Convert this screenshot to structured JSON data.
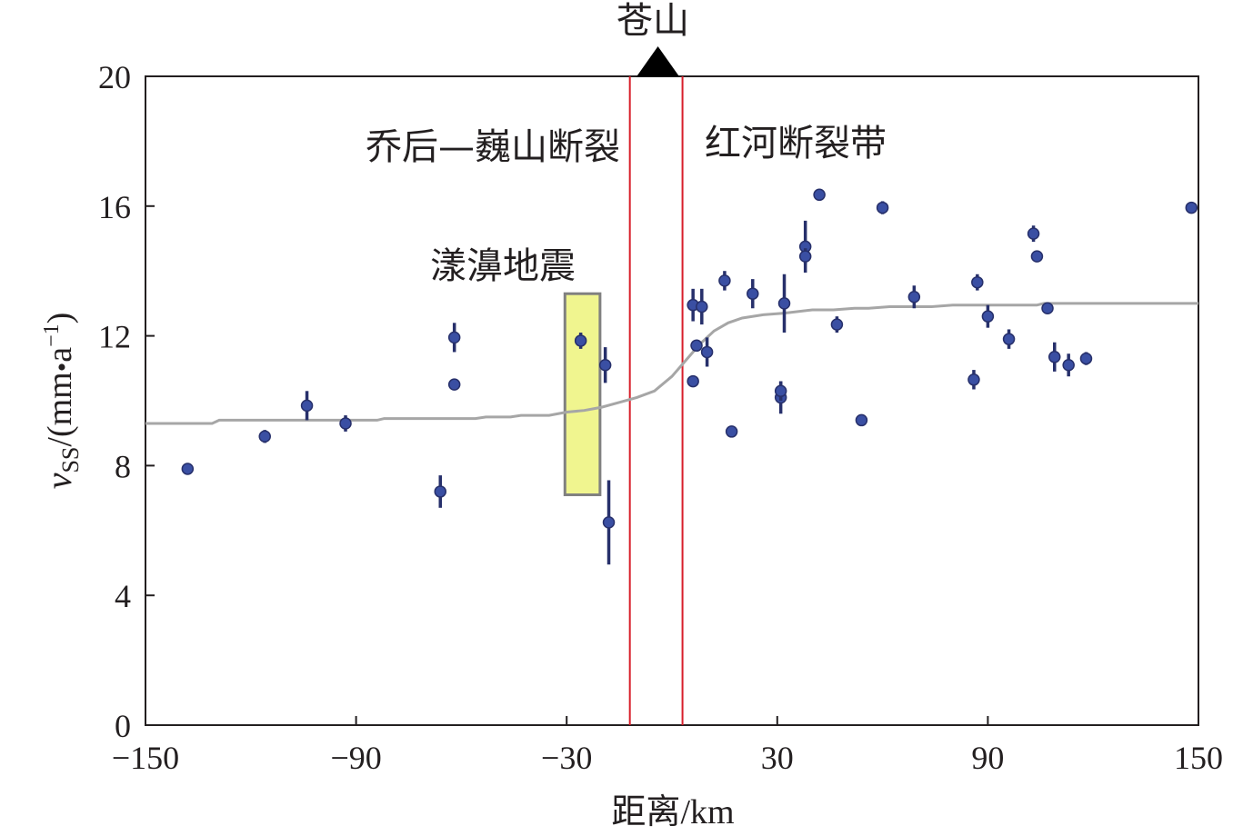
{
  "chart_data": {
    "type": "scatter",
    "xlabel_cn": "距离",
    "xlabel_unit": "/km",
    "ylabel_var": "v",
    "ylabel_sub": "SS",
    "ylabel_unit_open": "/(mm",
    "ylabel_unit_dot": "•",
    "ylabel_unit_a": "a",
    "ylabel_unit_sup": "−1",
    "ylabel_unit_close": ")",
    "xlim": [
      -150,
      150
    ],
    "ylim": [
      0,
      20
    ],
    "xticks": [
      -150,
      -90,
      -30,
      30,
      90,
      150
    ],
    "xtick_labels": [
      "−150",
      "−90",
      "−30",
      "30",
      "90",
      "150"
    ],
    "yticks": [
      0,
      4,
      8,
      12,
      16,
      20
    ],
    "ytick_labels": [
      "0",
      "4",
      "8",
      "12",
      "16",
      "20"
    ],
    "annotations": {
      "mountain": "苍山",
      "fault_left": "乔后—巍山断裂",
      "fault_right": "红河断裂带",
      "earthquake": "漾濞地震"
    },
    "fault_lines_x": [
      -12,
      3
    ],
    "earthquake_box": {
      "x": [
        -30.5,
        -20.5
      ],
      "y": [
        7.1,
        13.3
      ],
      "fill": "#f0f58f",
      "stroke": "#808080"
    },
    "mountain_x": -4,
    "colors": {
      "points": "#3a4fa3",
      "errorbars": "#27306b",
      "fault_lines": "#d81e2a",
      "model_curve": "#a6a6a6",
      "axis": "#231f20"
    },
    "series": [
      {
        "kind": "observations",
        "points": [
          {
            "x": -138,
            "y": 7.9,
            "err": 0.1
          },
          {
            "x": -116,
            "y": 8.9,
            "err": 0.2
          },
          {
            "x": -104,
            "y": 9.85,
            "err": 0.45
          },
          {
            "x": -93,
            "y": 9.3,
            "err": 0.25
          },
          {
            "x": -66,
            "y": 7.2,
            "err": 0.5
          },
          {
            "x": -62,
            "y": 11.95,
            "err": 0.45
          },
          {
            "x": -62,
            "y": 10.5,
            "err": 0.15
          },
          {
            "x": -26,
            "y": 11.85,
            "err": 0.25
          },
          {
            "x": -19,
            "y": 11.1,
            "err": 0.55
          },
          {
            "x": -18,
            "y": 6.25,
            "err": 1.3
          },
          {
            "x": 6,
            "y": 10.6,
            "err": 0.1
          },
          {
            "x": 6,
            "y": 12.95,
            "err": 0.5
          },
          {
            "x": 7,
            "y": 11.7,
            "err": 0.1
          },
          {
            "x": 8.5,
            "y": 12.9,
            "err": 0.55
          },
          {
            "x": 10,
            "y": 11.5,
            "err": 0.45
          },
          {
            "x": 15,
            "y": 13.7,
            "err": 0.3
          },
          {
            "x": 17,
            "y": 9.05,
            "err": 0.1
          },
          {
            "x": 23,
            "y": 13.3,
            "err": 0.45
          },
          {
            "x": 31,
            "y": 10.1,
            "err": 0.5
          },
          {
            "x": 31,
            "y": 10.3,
            "err": 0.3
          },
          {
            "x": 32,
            "y": 13.0,
            "err": 0.9
          },
          {
            "x": 38,
            "y": 14.75,
            "err": 0.8
          },
          {
            "x": 38,
            "y": 14.45,
            "err": 0.25
          },
          {
            "x": 42,
            "y": 16.35,
            "err": 0.05
          },
          {
            "x": 47,
            "y": 12.35,
            "err": 0.25
          },
          {
            "x": 54,
            "y": 9.4,
            "err": 0.1
          },
          {
            "x": 60,
            "y": 15.95,
            "err": 0.2
          },
          {
            "x": 69,
            "y": 13.2,
            "err": 0.35
          },
          {
            "x": 86,
            "y": 10.65,
            "err": 0.3
          },
          {
            "x": 87,
            "y": 13.65,
            "err": 0.25
          },
          {
            "x": 90,
            "y": 12.6,
            "err": 0.35
          },
          {
            "x": 96,
            "y": 11.9,
            "err": 0.3
          },
          {
            "x": 103,
            "y": 15.15,
            "err": 0.25
          },
          {
            "x": 104,
            "y": 14.45,
            "err": 0.1
          },
          {
            "x": 109,
            "y": 11.35,
            "err": 0.45
          },
          {
            "x": 107,
            "y": 12.85,
            "err": 0.1
          },
          {
            "x": 113,
            "y": 11.1,
            "err": 0.35
          },
          {
            "x": 118,
            "y": 11.3,
            "err": 0.2
          },
          {
            "x": 148,
            "y": 15.95,
            "err": 0.1
          }
        ]
      },
      {
        "kind": "model",
        "x": [
          -150,
          -131,
          -129,
          -98,
          -96,
          -84,
          -82,
          -56,
          -53,
          -46,
          -43,
          -35,
          -30,
          -25,
          -20,
          -15,
          -10,
          -5,
          0,
          4,
          8,
          12,
          16,
          20,
          26,
          32,
          40,
          46,
          52,
          56,
          62,
          66,
          74,
          80,
          84,
          90,
          104,
          106,
          150
        ],
        "y": [
          9.3,
          9.3,
          9.4,
          9.4,
          9.4,
          9.4,
          9.45,
          9.45,
          9.5,
          9.5,
          9.55,
          9.55,
          9.65,
          9.7,
          9.8,
          9.95,
          10.1,
          10.3,
          10.75,
          11.25,
          11.75,
          12.15,
          12.4,
          12.55,
          12.65,
          12.7,
          12.8,
          12.8,
          12.85,
          12.85,
          12.9,
          12.9,
          12.9,
          12.95,
          12.95,
          12.95,
          12.95,
          13.0,
          13.0
        ]
      }
    ]
  }
}
